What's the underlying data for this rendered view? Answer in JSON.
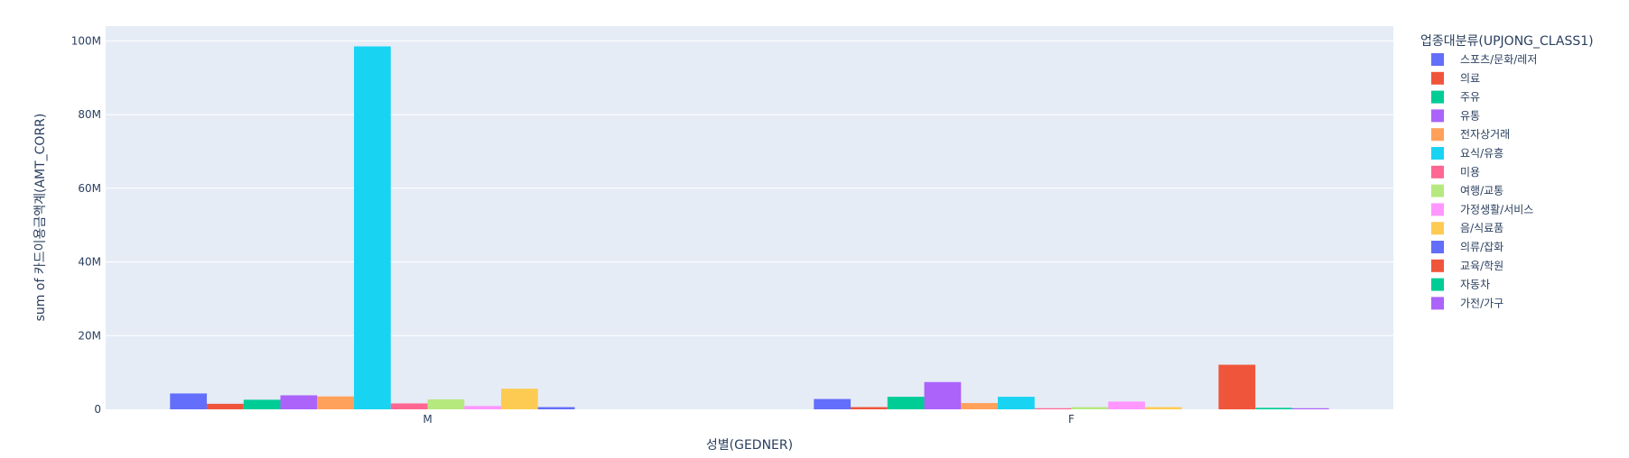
{
  "chart_data": {
    "type": "bar",
    "barmode": "group",
    "xlabel": "성별(GEDNER)",
    "ylabel": "sum of 카드이용금액계(AMT_CORR)",
    "categories": [
      "M",
      "F"
    ],
    "ylim": [
      0,
      104000000
    ],
    "y_ticks": [
      {
        "value": 0,
        "label": "0"
      },
      {
        "value": 20000000,
        "label": "20M"
      },
      {
        "value": 40000000,
        "label": "40M"
      },
      {
        "value": 60000000,
        "label": "60M"
      },
      {
        "value": 80000000,
        "label": "80M"
      },
      {
        "value": 100000000,
        "label": "100M"
      }
    ],
    "grid": true,
    "legend": {
      "title": "업종대분류(UPJONG_CLASS1)",
      "position": "right"
    },
    "series": [
      {
        "name": "스포츠/문화/레저",
        "color": "#636efa",
        "values": [
          4300000,
          2800000
        ]
      },
      {
        "name": "의료",
        "color": "#ef553b",
        "values": [
          1500000,
          600000
        ]
      },
      {
        "name": "주유",
        "color": "#00cc96",
        "values": [
          2600000,
          3400000
        ]
      },
      {
        "name": "유통",
        "color": "#ab63fa",
        "values": [
          3800000,
          7400000
        ]
      },
      {
        "name": "전자상거래",
        "color": "#ffa15a",
        "values": [
          3500000,
          1700000
        ]
      },
      {
        "name": "요식/유흥",
        "color": "#19d3f3",
        "values": [
          98500000,
          3400000
        ]
      },
      {
        "name": "미용",
        "color": "#ff6692",
        "values": [
          1600000,
          300000
        ]
      },
      {
        "name": "여행/교통",
        "color": "#b6e880",
        "values": [
          2700000,
          600000
        ]
      },
      {
        "name": "가정생활/서비스",
        "color": "#ff97ff",
        "values": [
          900000,
          2100000
        ]
      },
      {
        "name": "음/식료품",
        "color": "#fecb52",
        "values": [
          5600000,
          600000
        ]
      },
      {
        "name": "의류/잡화",
        "color": "#636efa",
        "values": [
          600000,
          0
        ]
      },
      {
        "name": "교육/학원",
        "color": "#ef553b",
        "values": [
          0,
          12100000
        ]
      },
      {
        "name": "자동차",
        "color": "#00cc96",
        "values": [
          0,
          400000
        ]
      },
      {
        "name": "가전/가구",
        "color": "#ab63fa",
        "values": [
          0,
          300000
        ]
      }
    ]
  }
}
